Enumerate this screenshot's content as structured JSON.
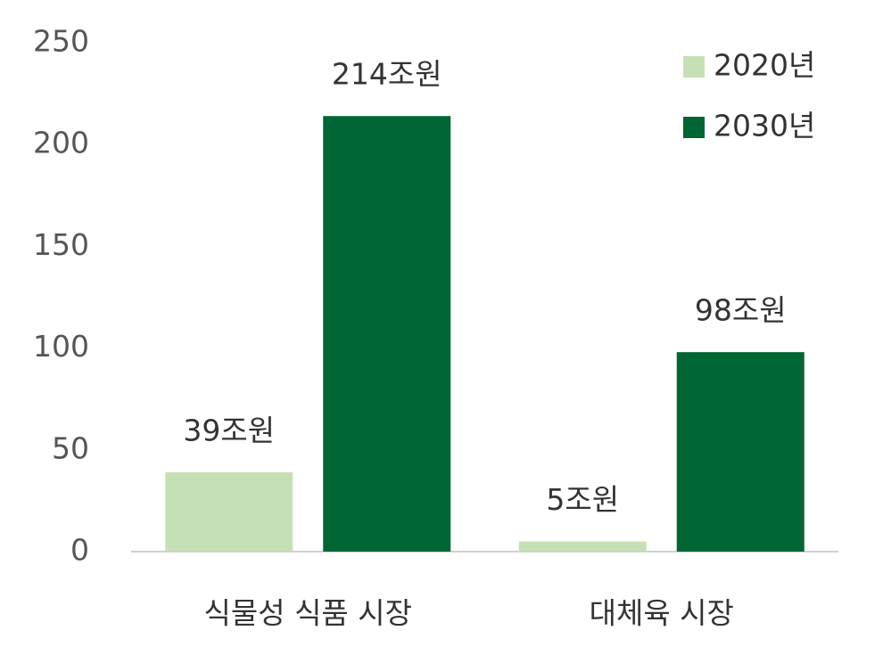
{
  "chart_data": {
    "type": "bar",
    "categories": [
      "식물성 식품 시장",
      "대체육 시장"
    ],
    "series": [
      {
        "name": "2020년",
        "color": "#c5e0b4",
        "values": [
          39,
          5
        ],
        "value_labels": [
          "39조원",
          "5조원"
        ]
      },
      {
        "name": "2030년",
        "color": "#006633",
        "values": [
          214,
          98
        ],
        "value_labels": [
          "214조원",
          "98조원"
        ]
      }
    ],
    "ylim": [
      0,
      250
    ],
    "yticks": [
      0,
      50,
      100,
      150,
      200,
      250
    ],
    "legend": "top-right"
  }
}
